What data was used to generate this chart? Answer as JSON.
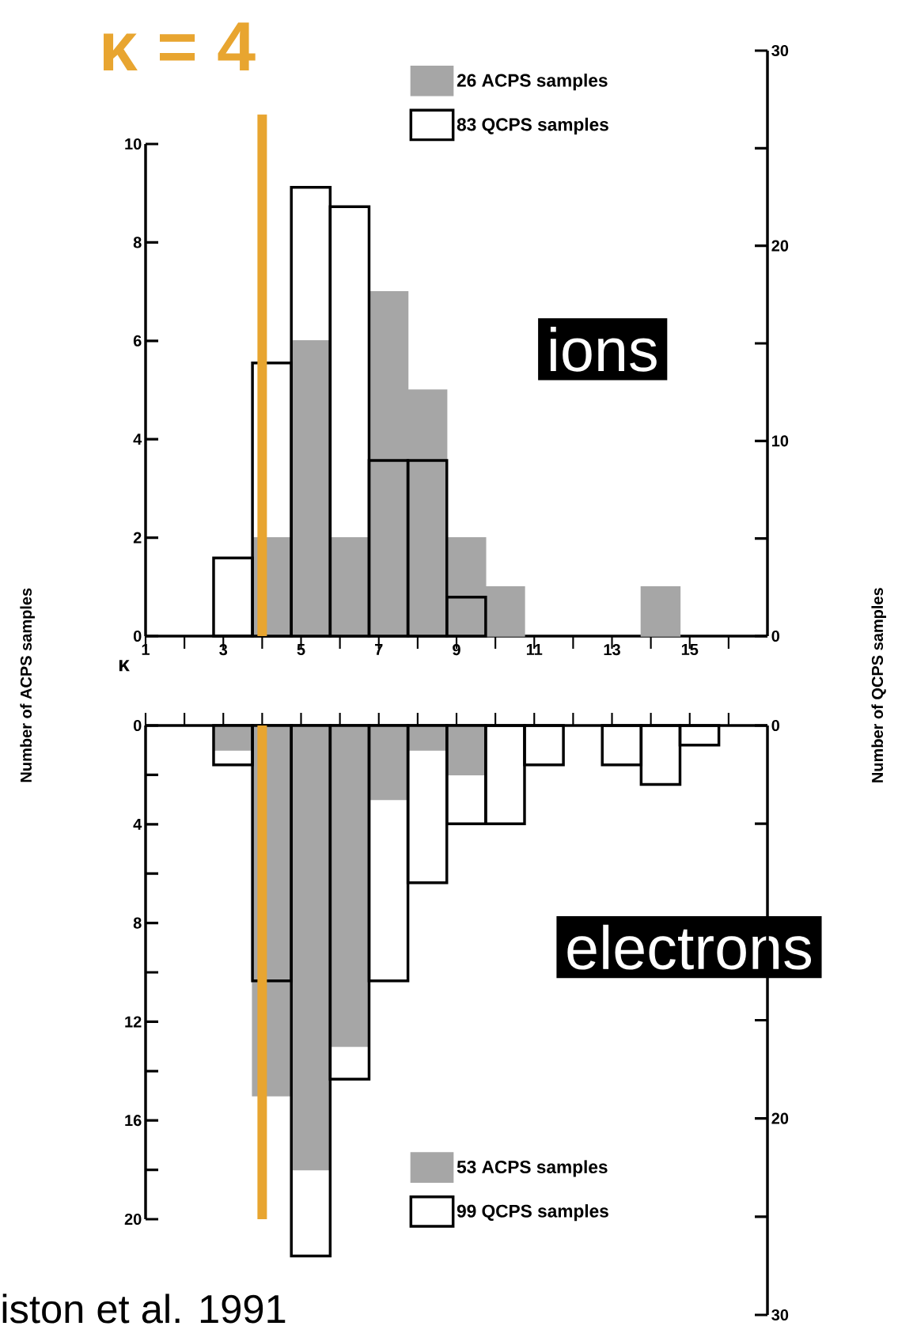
{
  "chart_data": [
    {
      "type": "histogram",
      "xlabel": "κ",
      "ylabel": "Number of ACPS samples",
      "y2label": "Number of QCPS samples",
      "legend": "top",
      "bins": [
        2.75,
        3.75,
        4.75,
        5.75,
        6.75,
        7.75,
        8.75,
        9.75,
        10.75,
        11.75,
        12.75,
        13.75,
        14.75,
        15.75
      ],
      "series": [
        {
          "name": "26 ACPS samples",
          "color": "#a6a6a6",
          "values": [
            0,
            2,
            6,
            2,
            7,
            5,
            2,
            1,
            0,
            0,
            0,
            1,
            0
          ]
        },
        {
          "name": "83 QCPS samples",
          "color": "#000000",
          "axis": "y2",
          "values": [
            4,
            14,
            23,
            22,
            9,
            9,
            2,
            0,
            0,
            0,
            0,
            0,
            0
          ]
        }
      ],
      "xlim": [
        1,
        17
      ],
      "xticks": [
        1,
        {
          "value": 2,
          "label": null
        },
        3,
        {
          "value": 4,
          "label": null
        },
        5,
        {
          "value": 6,
          "label": null
        },
        7,
        {
          "value": 8,
          "label": null
        },
        9,
        {
          "value": 10,
          "label": null
        },
        11,
        {
          "value": 12,
          "label": null
        },
        13,
        {
          "value": 14,
          "label": null
        },
        15,
        {
          "value": 16,
          "label": null
        }
      ],
      "ylim": [
        0,
        10
      ],
      "yticks": [
        0,
        2,
        4,
        6,
        8,
        10
      ],
      "y2lim": [
        0,
        30
      ],
      "y2ticks": [
        0,
        {
          "value": 5,
          "label": null
        },
        10,
        {
          "value": 15,
          "label": null
        },
        20,
        {
          "value": 25,
          "label": null
        },
        30
      ],
      "ref_lines": [
        {
          "axis": "x",
          "value": 4,
          "label": "κ = 4",
          "color": "#e8a530"
        }
      ],
      "annotations": [
        "ions"
      ]
    },
    {
      "type": "histogram",
      "legend": "bottom",
      "tick_labels": "y",
      "bins": [
        2.75,
        3.75,
        4.75,
        5.75,
        6.75,
        7.75,
        8.75,
        9.75,
        10.75,
        11.75,
        12.75,
        13.75,
        14.75,
        15.75
      ],
      "series": [
        {
          "name": "53 ACPS samples",
          "color": "#a6a6a6",
          "values": [
            1,
            15,
            18,
            13,
            3,
            1,
            2,
            0,
            0,
            0,
            0,
            0,
            0
          ]
        },
        {
          "name": "99 QCPS samples",
          "color": "#000000",
          "axis": "y2",
          "values": [
            2,
            13,
            27,
            18,
            13,
            8,
            5,
            5,
            2,
            0,
            2,
            3,
            1
          ]
        }
      ],
      "xlim": [
        1,
        17
      ],
      "xticks": [
        1,
        2,
        3,
        4,
        5,
        6,
        7,
        8,
        9,
        10,
        11,
        12,
        13,
        14,
        15,
        16
      ],
      "ylim": [
        20,
        0
      ],
      "yticks": [
        0,
        {
          "value": 2,
          "label": null
        },
        4,
        {
          "value": 6,
          "label": null
        },
        8,
        {
          "value": 10,
          "label": null
        },
        12,
        {
          "value": 14,
          "label": null
        },
        16,
        {
          "value": 18,
          "label": null
        },
        20
      ],
      "y2lim": [
        30,
        0
      ],
      "y2ticks": [
        0,
        {
          "value": 5,
          "label": null
        },
        {
          "value": 10,
          "label": null
        },
        {
          "value": 15,
          "label": null
        },
        20,
        {
          "value": 25,
          "label": null
        },
        30
      ],
      "ref_lines": [
        {
          "axis": "x",
          "value": 4,
          "color": "#e8a530"
        }
      ],
      "annotations": [
        "electrons",
        "iston et al. 1991"
      ]
    }
  ]
}
